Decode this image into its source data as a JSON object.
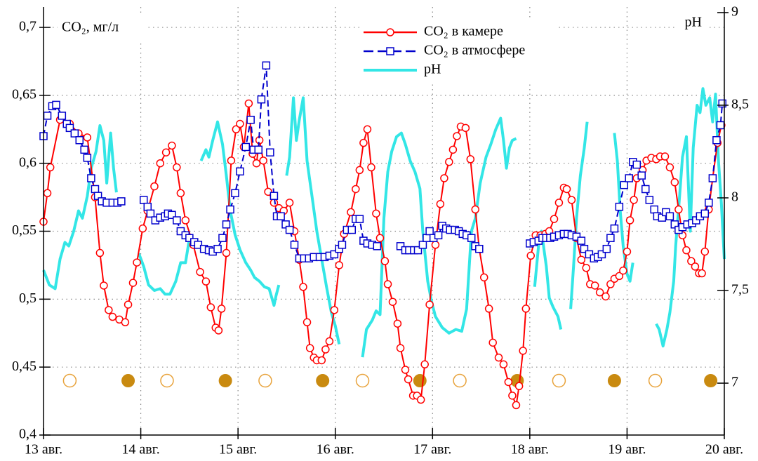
{
  "chart_data": {
    "type": "line",
    "y_label": "CO₂, мг/л",
    "y2_label": "pH",
    "legend": "upper center",
    "grid": true,
    "xlim": [
      13,
      20
    ],
    "xticks": [
      {
        "value": 13,
        "label": "13 авг."
      },
      {
        "value": 14,
        "label": "14 авг."
      },
      {
        "value": 15,
        "label": "15 авг."
      },
      {
        "value": 16,
        "label": "16 авг."
      },
      {
        "value": 17,
        "label": "17 авг."
      },
      {
        "value": 18,
        "label": "18 авг."
      },
      {
        "value": 19,
        "label": "19 авг."
      },
      {
        "value": 20,
        "label": "20 авг."
      }
    ],
    "ylim": [
      0.4,
      0.715
    ],
    "yticks": [
      {
        "value": 0.4,
        "label": "0,4"
      },
      {
        "value": 0.45,
        "label": "0,45"
      },
      {
        "value": 0.5,
        "label": "0,5"
      },
      {
        "value": 0.55,
        "label": "0,55"
      },
      {
        "value": 0.6,
        "label": "0,6"
      },
      {
        "value": 0.65,
        "label": "0,65"
      },
      {
        "value": 0.7,
        "label": "0,7"
      }
    ],
    "y2lim": [
      6.72,
      9.03
    ],
    "y2ticks": [
      7,
      {
        "value": 7.5,
        "label": "7,5"
      },
      8,
      {
        "value": 8.5,
        "label": "8,5"
      },
      9
    ],
    "series": [
      {
        "name": "CO₂ в камере",
        "color": "#ff0000",
        "marker": "circle",
        "dash": false,
        "x": [
          13.0,
          13.04,
          13.07,
          13.17,
          13.27,
          13.36,
          13.45,
          13.53,
          13.58,
          13.62,
          13.67,
          13.71,
          13.78,
          13.84,
          13.87,
          13.92,
          13.96,
          14.02,
          14.07,
          14.14,
          14.2,
          14.26,
          14.32,
          14.37,
          14.41,
          14.46,
          14.54,
          14.61,
          14.67,
          14.72,
          14.77,
          14.8,
          14.83,
          14.88,
          14.93,
          14.98,
          15.02,
          15.06,
          15.11,
          15.15,
          15.19,
          15.22,
          15.26,
          15.31,
          15.37,
          15.42,
          15.47,
          15.53,
          15.58,
          15.63,
          15.67,
          15.71,
          15.74,
          15.78,
          15.81,
          15.86,
          15.9,
          15.94,
          15.99,
          16.04,
          16.09,
          16.16,
          16.21,
          16.25,
          16.29,
          16.33,
          16.37,
          16.42,
          16.46,
          16.51,
          16.54,
          16.59,
          16.64,
          16.67,
          16.72,
          16.75,
          16.8,
          16.84,
          16.88,
          16.92,
          16.97,
          17.03,
          17.08,
          17.12,
          17.17,
          17.21,
          17.25,
          17.29,
          17.34,
          17.39,
          17.44,
          17.48,
          17.53,
          17.58,
          17.62,
          17.68,
          17.73,
          17.78,
          17.82,
          17.86,
          17.89,
          17.93,
          17.96,
          18.01,
          18.06,
          18.11,
          18.16,
          18.2,
          18.25,
          18.3,
          18.35,
          18.38,
          18.43,
          18.48,
          18.53,
          18.58,
          18.62,
          18.67,
          18.72,
          18.78,
          18.83,
          18.87,
          18.92,
          18.96,
          19.0,
          19.03,
          19.07,
          19.1,
          19.16,
          19.2,
          19.25,
          19.3,
          19.34,
          19.39,
          19.44,
          19.49,
          19.53,
          19.57,
          19.61,
          19.66,
          19.7,
          19.74,
          19.77,
          19.8,
          19.84,
          19.88,
          19.93,
          19.97
        ],
        "values": [
          0.557,
          0.578,
          0.597,
          0.632,
          0.629,
          0.622,
          0.619,
          0.575,
          0.534,
          0.51,
          0.492,
          0.487,
          0.485,
          0.483,
          0.496,
          0.512,
          0.527,
          0.552,
          0.565,
          0.583,
          0.6,
          0.608,
          0.613,
          0.597,
          0.578,
          0.558,
          0.54,
          0.52,
          0.513,
          0.494,
          0.479,
          0.477,
          0.493,
          0.534,
          0.602,
          0.625,
          0.629,
          0.612,
          0.644,
          0.607,
          0.6,
          0.617,
          0.602,
          0.579,
          0.571,
          0.567,
          0.565,
          0.571,
          0.55,
          0.529,
          0.509,
          0.483,
          0.464,
          0.457,
          0.455,
          0.455,
          0.463,
          0.469,
          0.492,
          0.525,
          0.548,
          0.564,
          0.581,
          0.595,
          0.615,
          0.625,
          0.597,
          0.563,
          0.545,
          0.528,
          0.511,
          0.498,
          0.482,
          0.464,
          0.448,
          0.441,
          0.429,
          0.429,
          0.426,
          0.452,
          0.496,
          0.54,
          0.57,
          0.589,
          0.601,
          0.61,
          0.62,
          0.627,
          0.626,
          0.603,
          0.566,
          0.537,
          0.516,
          0.493,
          0.468,
          0.457,
          0.452,
          0.439,
          0.429,
          0.422,
          0.436,
          0.462,
          0.493,
          0.532,
          0.547,
          0.547,
          0.548,
          0.55,
          0.559,
          0.571,
          0.582,
          0.581,
          0.573,
          0.545,
          0.529,
          0.523,
          0.511,
          0.51,
          0.505,
          0.502,
          0.511,
          0.515,
          0.517,
          0.521,
          0.535,
          0.558,
          0.573,
          0.589,
          0.595,
          0.602,
          0.604,
          0.603,
          0.605,
          0.605,
          0.597,
          0.586,
          0.566,
          0.547,
          0.536,
          0.528,
          0.524,
          0.519,
          0.519,
          0.535,
          0.566,
          0.589,
          0.615,
          0.628
        ]
      },
      {
        "name": "CO₂ в атмосфере",
        "color": "#0000cc",
        "marker": "square",
        "dash": true,
        "x": [
          13.0,
          13.04,
          13.09,
          13.13,
          13.19,
          13.24,
          13.27,
          13.32,
          13.37,
          13.42,
          13.45,
          13.49,
          13.53,
          13.56,
          13.6,
          13.65,
          13.71,
          13.76,
          13.8,
          13.9,
          14.03,
          14.07,
          14.1,
          14.15,
          14.2,
          14.25,
          14.28,
          14.32,
          14.37,
          14.41,
          14.46,
          14.5,
          14.55,
          14.59,
          14.65,
          14.7,
          14.74,
          14.79,
          14.84,
          14.88,
          14.92,
          14.97,
          15.02,
          15.08,
          15.13,
          15.16,
          15.21,
          15.24,
          15.29,
          15.33,
          15.37,
          15.4,
          15.44,
          15.49,
          15.53,
          15.58,
          15.63,
          15.68,
          15.73,
          15.78,
          15.84,
          15.89,
          15.94,
          15.99,
          16.04,
          16.07,
          16.12,
          16.17,
          16.21,
          16.25,
          16.29,
          16.33,
          16.38,
          16.43,
          16.6,
          16.67,
          16.72,
          16.76,
          16.81,
          16.85,
          16.9,
          16.94,
          16.97,
          17.01,
          17.06,
          17.1,
          17.14,
          17.18,
          17.23,
          17.27,
          17.31,
          17.35,
          17.4,
          17.44,
          17.48,
          17.7,
          18.0,
          18.04,
          18.09,
          18.13,
          18.17,
          18.21,
          18.25,
          18.3,
          18.35,
          18.39,
          18.43,
          18.48,
          18.53,
          18.56,
          18.61,
          18.66,
          18.7,
          18.74,
          18.79,
          18.83,
          18.87,
          18.92,
          18.97,
          19.02,
          19.06,
          19.1,
          19.15,
          19.19,
          19.23,
          19.28,
          19.31,
          19.36,
          19.4,
          19.44,
          19.49,
          19.53,
          19.57,
          19.62,
          19.67,
          19.71,
          19.75,
          19.8,
          19.84,
          19.88,
          19.92,
          19.96,
          19.98
        ],
        "values": [
          0.62,
          0.635,
          0.642,
          0.643,
          0.635,
          0.629,
          0.626,
          0.622,
          0.617,
          0.61,
          0.604,
          0.589,
          0.581,
          0.576,
          0.572,
          0.571,
          0.571,
          0.571,
          0.572,
          null,
          0.573,
          0.568,
          0.563,
          0.558,
          0.56,
          0.561,
          0.563,
          0.562,
          0.558,
          0.55,
          0.547,
          0.545,
          0.542,
          0.54,
          0.537,
          0.536,
          0.535,
          0.537,
          0.545,
          0.555,
          0.566,
          0.578,
          0.594,
          0.612,
          0.632,
          0.61,
          0.61,
          0.647,
          0.672,
          0.608,
          0.576,
          0.561,
          0.561,
          0.555,
          0.551,
          0.54,
          0.53,
          0.53,
          0.53,
          0.531,
          0.531,
          0.531,
          0.532,
          0.533,
          0.537,
          0.54,
          0.551,
          0.551,
          0.559,
          0.559,
          0.543,
          0.541,
          0.54,
          0.539,
          null,
          0.539,
          0.536,
          0.536,
          0.536,
          0.536,
          0.54,
          0.545,
          0.55,
          0.545,
          0.547,
          0.554,
          0.552,
          0.551,
          0.551,
          0.55,
          0.548,
          0.547,
          0.545,
          0.539,
          0.537,
          null,
          0.541,
          0.542,
          0.543,
          0.545,
          0.545,
          0.545,
          0.546,
          0.547,
          0.548,
          0.548,
          0.547,
          0.546,
          0.543,
          0.537,
          0.533,
          0.53,
          0.531,
          0.533,
          0.537,
          0.545,
          0.552,
          0.568,
          0.584,
          0.589,
          0.601,
          0.599,
          0.591,
          0.581,
          0.573,
          0.566,
          0.561,
          0.56,
          0.564,
          0.561,
          0.555,
          0.551,
          0.553,
          0.555,
          0.556,
          0.558,
          0.561,
          0.563,
          0.571,
          0.589,
          0.617,
          0.628,
          0.644
        ]
      },
      {
        "name": "pH",
        "color": "#33e6e6",
        "axis": "y2",
        "x": [
          13.0,
          13.06,
          13.12,
          13.17,
          13.22,
          13.26,
          13.31,
          13.36,
          13.4,
          13.45,
          13.49,
          13.54,
          13.58,
          13.62,
          13.65,
          13.69,
          13.72,
          13.75,
          13.9,
          13.98,
          14.03,
          14.08,
          14.14,
          14.2,
          14.25,
          14.3,
          14.36,
          14.41,
          14.46,
          14.5,
          14.55,
          14.62,
          14.67,
          14.7,
          14.74,
          14.79,
          14.84,
          14.88,
          14.92,
          14.97,
          15.02,
          15.08,
          15.13,
          15.17,
          15.22,
          15.27,
          15.32,
          15.37,
          15.39,
          15.42,
          15.45,
          15.5,
          15.53,
          15.57,
          15.6,
          15.63,
          15.67,
          15.71,
          15.76,
          15.81,
          15.86,
          15.91,
          15.96,
          16.0,
          16.04,
          16.15,
          16.28,
          16.32,
          16.38,
          16.42,
          16.46,
          16.5,
          16.54,
          16.58,
          16.63,
          16.68,
          16.72,
          16.77,
          16.82,
          16.87,
          16.9,
          16.95,
          16.99,
          17.03,
          17.1,
          17.17,
          17.24,
          17.3,
          17.35,
          17.4,
          17.44,
          17.49,
          17.55,
          17.6,
          17.65,
          17.7,
          17.73,
          17.76,
          17.79,
          17.82,
          17.86,
          18.0,
          18.05,
          18.09,
          18.12,
          18.17,
          18.2,
          18.24,
          18.29,
          18.32,
          18.4,
          18.42,
          18.45,
          18.48,
          18.52,
          18.56,
          18.59,
          18.7,
          18.87,
          18.9,
          18.93,
          18.96,
          19.0,
          19.03,
          19.06,
          19.15,
          19.3,
          19.33,
          19.37,
          19.41,
          19.44,
          19.48,
          19.5,
          19.54,
          19.57,
          19.61,
          19.65,
          19.68,
          19.72,
          19.75,
          19.78,
          19.81,
          19.85,
          19.88,
          19.91,
          19.94,
          19.97,
          20.0
        ],
        "values": [
          7.61,
          7.53,
          7.51,
          7.67,
          7.76,
          7.74,
          7.82,
          7.93,
          7.89,
          8.01,
          8.16,
          8.25,
          8.39,
          8.31,
          8.08,
          8.35,
          8.16,
          8.03,
          null,
          7.7,
          7.63,
          7.53,
          7.5,
          7.51,
          7.48,
          7.48,
          7.55,
          7.65,
          7.65,
          7.78,
          null,
          8.2,
          8.26,
          8.22,
          8.31,
          8.41,
          8.29,
          8.12,
          7.93,
          7.8,
          7.72,
          7.65,
          7.61,
          7.57,
          7.55,
          7.52,
          7.51,
          7.42,
          7.47,
          7.53,
          null,
          8.12,
          8.22,
          8.54,
          8.31,
          8.42,
          8.54,
          8.2,
          8.01,
          7.82,
          7.67,
          7.52,
          7.38,
          7.31,
          7.21,
          null,
          7.14,
          7.29,
          7.34,
          7.39,
          7.37,
          7.89,
          8.14,
          8.25,
          8.33,
          8.35,
          8.29,
          8.2,
          8.14,
          8.05,
          7.82,
          7.55,
          7.44,
          7.36,
          7.3,
          7.27,
          7.29,
          7.28,
          7.4,
          7.82,
          7.89,
          8.08,
          8.22,
          8.29,
          8.37,
          8.43,
          8.31,
          8.16,
          8.27,
          8.31,
          8.32,
          null,
          7.52,
          7.74,
          7.82,
          7.63,
          7.46,
          7.41,
          7.36,
          7.29,
          null,
          7.4,
          7.63,
          7.89,
          8.12,
          8.27,
          8.41,
          null,
          8.35,
          8.2,
          7.93,
          7.74,
          7.59,
          7.55,
          7.65,
          null,
          7.32,
          7.29,
          7.2,
          7.29,
          7.38,
          7.55,
          7.74,
          8.01,
          8.22,
          8.33,
          7.82,
          8.27,
          8.5,
          8.46,
          8.59,
          8.5,
          8.54,
          8.41,
          8.56,
          8.2,
          7.97,
          7.67
        ]
      }
    ],
    "day_markers": [
      {
        "filled": false,
        "color": "#e8a33c",
        "x": [
          13.27,
          14.27,
          15.28,
          16.28,
          17.28,
          18.3,
          19.29
        ],
        "values": [
          0.44,
          0.44,
          0.44,
          0.44,
          0.44,
          0.44,
          0.44
        ]
      },
      {
        "filled": true,
        "color": "#c98a10",
        "x": [
          13.87,
          14.87,
          15.87,
          16.87,
          17.87,
          18.87,
          19.86
        ],
        "values": [
          0.44,
          0.44,
          0.44,
          0.44,
          0.44,
          0.44,
          0.44
        ]
      }
    ]
  }
}
